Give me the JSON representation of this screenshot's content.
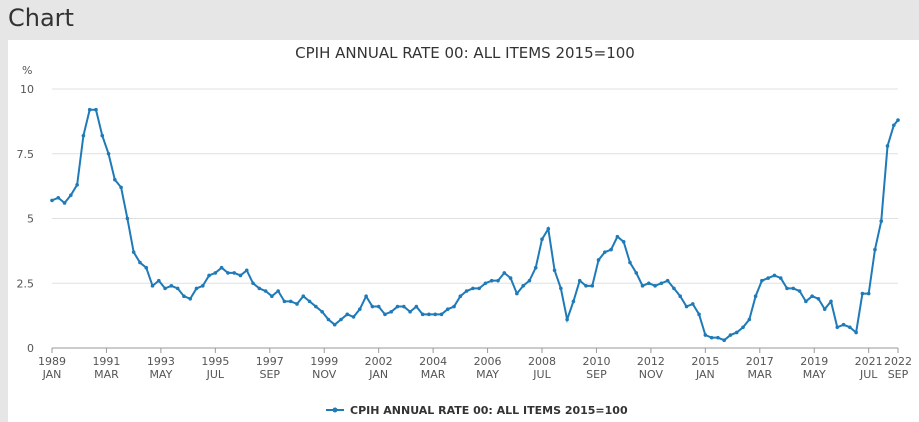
{
  "header": {
    "title": "Chart"
  },
  "chart_data": {
    "type": "line",
    "title": "CPIH ANNUAL RATE 00: ALL ITEMS 2015=100",
    "y_unit": "%",
    "x": [
      "1989-01",
      "1989-04",
      "1989-07",
      "1989-10",
      "1990-01",
      "1990-04",
      "1990-07",
      "1990-10",
      "1991-01",
      "1991-04",
      "1991-07",
      "1991-10",
      "1992-01",
      "1992-04",
      "1992-07",
      "1992-10",
      "1993-01",
      "1993-04",
      "1993-07",
      "1993-10",
      "1994-01",
      "1994-04",
      "1994-07",
      "1994-10",
      "1995-01",
      "1995-04",
      "1995-07",
      "1995-10",
      "1996-01",
      "1996-04",
      "1996-07",
      "1996-10",
      "1997-01",
      "1997-04",
      "1997-07",
      "1997-10",
      "1998-01",
      "1998-04",
      "1998-07",
      "1998-10",
      "1999-01",
      "1999-04",
      "1999-07",
      "1999-10",
      "2000-01",
      "2000-04",
      "2000-07",
      "2000-10",
      "2001-01",
      "2001-04",
      "2001-07",
      "2001-10",
      "2002-01",
      "2002-04",
      "2002-07",
      "2002-10",
      "2003-01",
      "2003-04",
      "2003-07",
      "2003-10",
      "2004-01",
      "2004-04",
      "2004-07",
      "2004-10",
      "2005-01",
      "2005-04",
      "2005-07",
      "2005-10",
      "2006-01",
      "2006-04",
      "2006-07",
      "2006-10",
      "2007-01",
      "2007-04",
      "2007-07",
      "2007-10",
      "2008-01",
      "2008-04",
      "2008-07",
      "2008-10",
      "2009-01",
      "2009-04",
      "2009-07",
      "2009-10",
      "2010-01",
      "2010-04",
      "2010-07",
      "2010-10",
      "2011-01",
      "2011-04",
      "2011-07",
      "2011-10",
      "2012-01",
      "2012-04",
      "2012-07",
      "2012-10",
      "2013-01",
      "2013-04",
      "2013-07",
      "2013-10",
      "2014-01",
      "2014-04",
      "2014-07",
      "2014-10",
      "2015-01",
      "2015-04",
      "2015-07",
      "2015-10",
      "2016-01",
      "2016-04",
      "2016-07",
      "2016-10",
      "2017-01",
      "2017-04",
      "2017-07",
      "2017-10",
      "2018-01",
      "2018-04",
      "2018-07",
      "2018-10",
      "2019-01",
      "2019-04",
      "2019-07",
      "2019-10",
      "2020-01",
      "2020-04",
      "2020-07",
      "2020-10",
      "2021-01",
      "2021-04",
      "2021-07",
      "2021-10",
      "2022-01",
      "2022-04",
      "2022-07",
      "2022-09"
    ],
    "series": [
      {
        "name": "CPIH ANNUAL RATE 00: ALL ITEMS 2015=100",
        "color": "#1f7ab8",
        "values": [
          5.7,
          5.8,
          5.6,
          5.9,
          6.3,
          8.2,
          9.2,
          9.2,
          8.2,
          7.5,
          6.5,
          6.2,
          5.0,
          3.7,
          3.3,
          3.1,
          2.4,
          2.6,
          2.3,
          2.4,
          2.3,
          2.0,
          1.9,
          2.3,
          2.4,
          2.8,
          2.9,
          3.1,
          2.9,
          2.9,
          2.8,
          3.0,
          2.5,
          2.3,
          2.2,
          2.0,
          2.2,
          1.8,
          1.8,
          1.7,
          2.0,
          1.8,
          1.6,
          1.4,
          1.1,
          0.9,
          1.1,
          1.3,
          1.2,
          1.5,
          2.0,
          1.6,
          1.6,
          1.3,
          1.4,
          1.6,
          1.6,
          1.4,
          1.6,
          1.3,
          1.3,
          1.3,
          1.3,
          1.5,
          1.6,
          2.0,
          2.2,
          2.3,
          2.3,
          2.5,
          2.6,
          2.6,
          2.9,
          2.7,
          2.1,
          2.4,
          2.6,
          3.1,
          4.2,
          4.6,
          3.0,
          2.3,
          1.1,
          1.8,
          2.6,
          2.4,
          2.4,
          3.4,
          3.7,
          3.8,
          4.3,
          4.1,
          3.3,
          2.9,
          2.4,
          2.5,
          2.4,
          2.5,
          2.6,
          2.3,
          2.0,
          1.6,
          1.7,
          1.3,
          0.5,
          0.4,
          0.4,
          0.3,
          0.5,
          0.6,
          0.8,
          1.1,
          2.0,
          2.6,
          2.7,
          2.8,
          2.7,
          2.3,
          2.3,
          2.2,
          1.8,
          2.0,
          1.9,
          1.5,
          1.8,
          0.8,
          0.9,
          0.8,
          0.6,
          2.1,
          2.1,
          3.8,
          4.9,
          7.8,
          8.6,
          8.8
        ]
      }
    ],
    "xlim": [
      "1989-01",
      "2022-09"
    ],
    "xticks": [
      {
        "value": "1989-01",
        "year": "1989",
        "month": "JAN"
      },
      {
        "value": "1991-03",
        "year": "1991",
        "month": "MAR"
      },
      {
        "value": "1993-05",
        "year": "1993",
        "month": "MAY"
      },
      {
        "value": "1995-07",
        "year": "1995",
        "month": "JUL"
      },
      {
        "value": "1997-09",
        "year": "1997",
        "month": "SEP"
      },
      {
        "value": "1999-11",
        "year": "1999",
        "month": "NOV"
      },
      {
        "value": "2002-01",
        "year": "2002",
        "month": "JAN"
      },
      {
        "value": "2004-03",
        "year": "2004",
        "month": "MAR"
      },
      {
        "value": "2006-05",
        "year": "2006",
        "month": "MAY"
      },
      {
        "value": "2008-07",
        "year": "2008",
        "month": "JUL"
      },
      {
        "value": "2010-09",
        "year": "2010",
        "month": "SEP"
      },
      {
        "value": "2012-11",
        "year": "2012",
        "month": "NOV"
      },
      {
        "value": "2015-01",
        "year": "2015",
        "month": "JAN"
      },
      {
        "value": "2017-03",
        "year": "2017",
        "month": "MAR"
      },
      {
        "value": "2019-05",
        "year": "2019",
        "month": "MAY"
      },
      {
        "value": "2021-07",
        "year": "2021",
        "month": "JUL"
      },
      {
        "value": "2022-09",
        "year": "2022",
        "month": "SEP"
      }
    ],
    "ylim": [
      0,
      10
    ],
    "yticks": [
      0,
      2.5,
      5,
      7.5,
      10
    ],
    "grid": true,
    "legend": "bottom"
  }
}
